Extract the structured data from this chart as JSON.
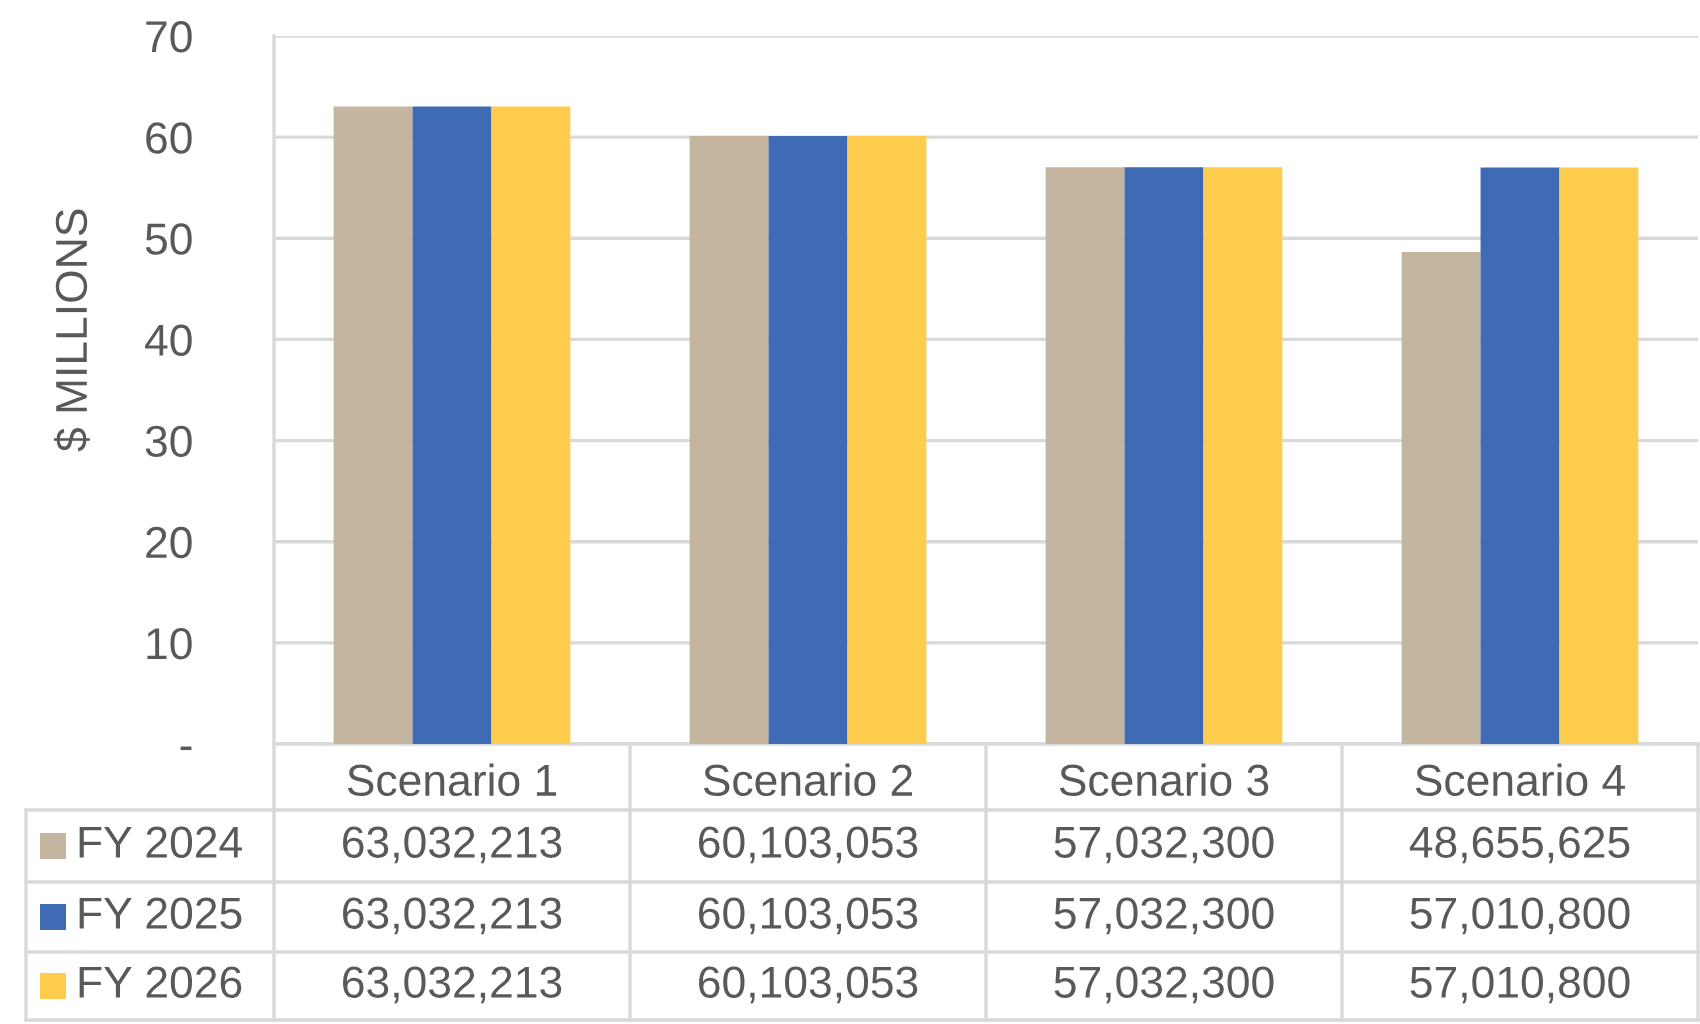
{
  "chart_data": {
    "type": "bar",
    "ylabel": "$ MILLIONS",
    "categories": [
      "Scenario 1",
      "Scenario 2",
      "Scenario 3",
      "Scenario 4"
    ],
    "series": [
      {
        "name": "FY 2024",
        "color": "#c4b5a0",
        "values": [
          63.032213,
          60.103053,
          57.0323,
          48.655625
        ]
      },
      {
        "name": "FY 2025",
        "color": "#3e6bb4",
        "values": [
          63.032213,
          60.103053,
          57.0323,
          57.0108
        ]
      },
      {
        "name": "FY 2026",
        "color": "#ffcd4d",
        "values": [
          63.032213,
          60.103053,
          57.0323,
          57.0108
        ]
      }
    ],
    "annotations": [
      "63,032,213",
      "60,103,053",
      "57,032,300",
      "48,655,625",
      "63,032,213",
      "60,103,053",
      "57,032,300",
      "57,010,800",
      "63,032,213",
      "60,103,053",
      "57,032,300",
      "57,010,800"
    ],
    "ylim": [
      0,
      70
    ],
    "yticks": [
      {
        "value": 0,
        "label": "-"
      },
      10,
      20,
      30,
      40,
      50,
      60,
      70
    ],
    "grid": "y",
    "legend": "bottom"
  }
}
